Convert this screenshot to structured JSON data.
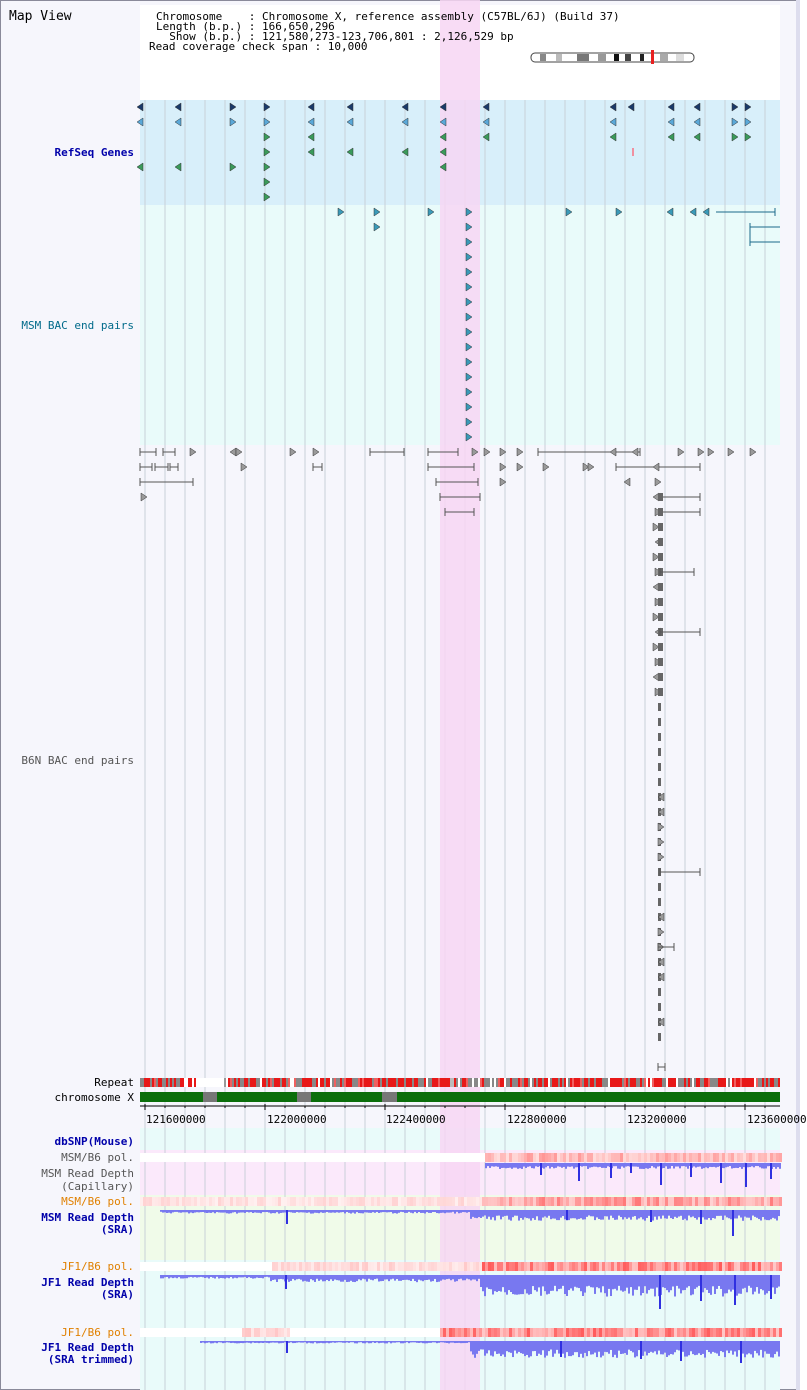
{
  "header": {
    "title": "Map View",
    "line1": "Chromosome    : Chromosome X, reference assembly (C57BL/6J) (Build 37)",
    "line2": "Length (b.p.) : 166,650,296",
    "line3": "  Show (b.p.) : 121,580,273-123,706,801 : 2,126,529 bp",
    "line4": "Read coverage check span : 10,000"
  },
  "tracks": {
    "refseq": "RefSeq Genes",
    "msm_bac": "MSM BAC end pairs",
    "b6n_bac": "B6N BAC end pairs",
    "repeat": "Repeat",
    "chrom": "chromosome X",
    "dbsnp": "dbSNP(Mouse)",
    "msm_b6_pol_1": "MSM/B6 pol.",
    "msm_depth_cap_1": "MSM Read Depth",
    "msm_depth_cap_2": "(Capillary)",
    "msm_b6_pol_2": "MSM/B6 pol.",
    "msm_depth_sra_1": "MSM Read Depth",
    "msm_depth_sra_2": "(SRA)",
    "jf1_b6_pol_1": "JF1/B6 pol.",
    "jf1_depth_sra_1": "JF1 Read Depth",
    "jf1_depth_sra_2": "(SRA)",
    "jf1_b6_pol_2": "JF1/B6 pol.",
    "jf1_depth_trim_1": "JF1 Read Depth",
    "jf1_depth_trim_2": "(SRA trimmed)"
  },
  "axis": {
    "ticks": [
      "121600000",
      "122000000",
      "122400000",
      "122800000",
      "123200000",
      "123600000"
    ]
  },
  "colors": {
    "refseq_bg": "#d8effa",
    "msm_bg": "#e9fbfa",
    "highlight": "#f7d6f3",
    "repeat_red": "#e81818",
    "chrom_green": "#0b6e0b",
    "label_blue": "#0000aa",
    "label_orange": "#e08000",
    "label_teal": "#006a8a",
    "label_gray": "#555555"
  }
}
